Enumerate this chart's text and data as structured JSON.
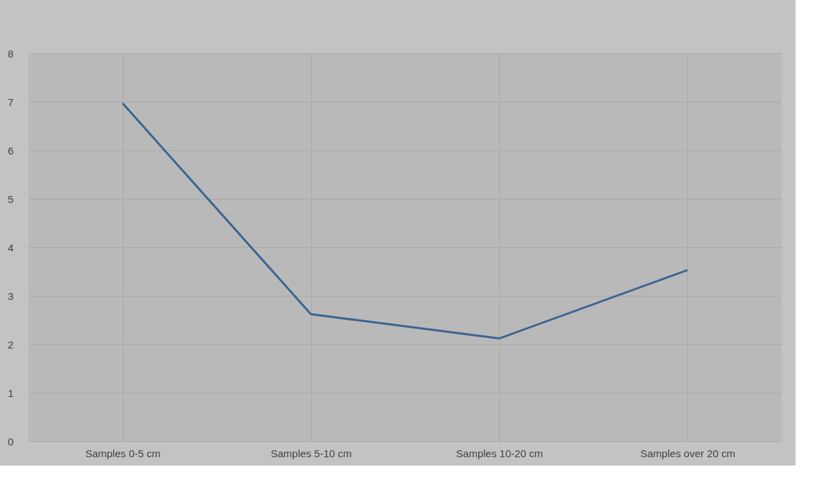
{
  "chart_data": {
    "type": "line",
    "categories": [
      "Samples   0-5 cm",
      "Samples   5-10 cm",
      "Samples   10-20 cm",
      "Samples over   20 cm"
    ],
    "series": [
      {
        "color": "#3a6490",
        "values": [
          6.97,
          2.62,
          2.12,
          3.53
        ]
      }
    ],
    "ylim": [
      0,
      8
    ],
    "yticks": [
      0,
      1,
      2,
      3,
      4,
      5,
      6,
      7,
      8
    ],
    "grid": true,
    "marker": "none",
    "line_style": "solid"
  }
}
